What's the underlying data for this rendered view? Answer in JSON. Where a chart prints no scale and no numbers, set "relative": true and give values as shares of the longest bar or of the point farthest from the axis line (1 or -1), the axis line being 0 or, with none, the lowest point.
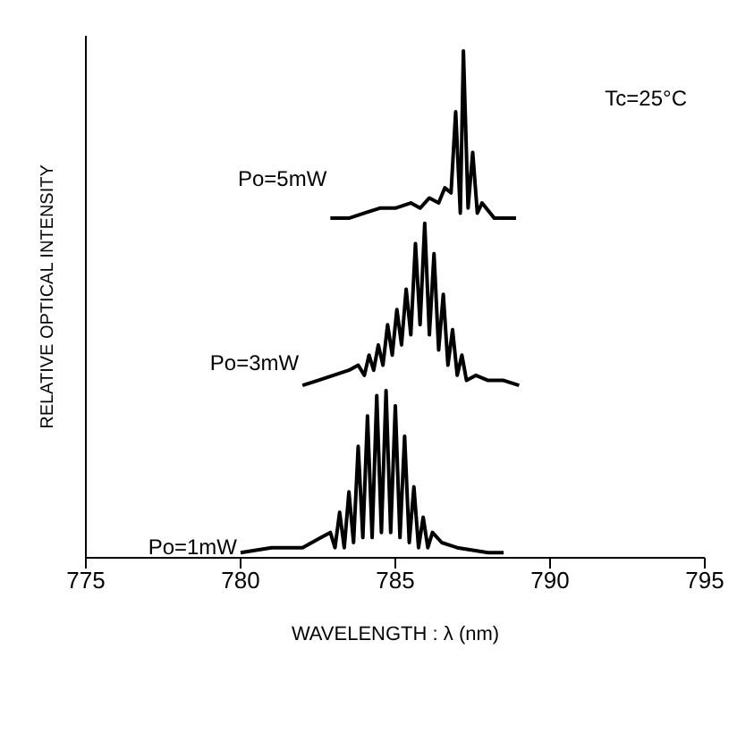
{
  "chart_data": {
    "type": "line",
    "relative": true,
    "xlabel": "WAVELENGTH : λ  (nm)",
    "ylabel": "RELATIVE OPTICAL INTENSITY",
    "xlim": [
      775,
      795
    ],
    "xticks": [
      775,
      780,
      785,
      790,
      795
    ],
    "marker": "none",
    "line_style": "solid",
    "annotations": [
      "Tc=25°C"
    ],
    "series": [
      {
        "name": "Po=5mW",
        "color": "#000000",
        "x": [
          782.9,
          783.5,
          784,
          784.5,
          785,
          785.5,
          785.8,
          786.1,
          786.4,
          786.6,
          786.8,
          786.95,
          787.1,
          787.2,
          787.35,
          787.5,
          787.65,
          787.8,
          788.2,
          788.9
        ],
        "values": [
          0.67,
          0.67,
          0.68,
          0.69,
          0.69,
          0.7,
          0.69,
          0.71,
          0.7,
          0.73,
          0.72,
          0.88,
          0.68,
          1.0,
          0.69,
          0.8,
          0.68,
          0.7,
          0.67,
          0.67
        ]
      },
      {
        "name": "Po=3mW",
        "color": "#000000",
        "x": [
          782,
          782.5,
          783,
          783.5,
          783.8,
          784,
          784.15,
          784.3,
          784.45,
          784.6,
          784.75,
          784.9,
          785.05,
          785.2,
          785.35,
          785.5,
          785.65,
          785.8,
          785.95,
          786.1,
          786.25,
          786.4,
          786.55,
          786.7,
          786.85,
          787,
          787.15,
          787.3,
          787.6,
          788,
          788.5,
          789
        ],
        "values": [
          0.34,
          0.35,
          0.36,
          0.37,
          0.38,
          0.36,
          0.4,
          0.37,
          0.42,
          0.38,
          0.46,
          0.4,
          0.49,
          0.42,
          0.53,
          0.44,
          0.62,
          0.46,
          0.66,
          0.44,
          0.6,
          0.41,
          0.52,
          0.38,
          0.45,
          0.36,
          0.4,
          0.35,
          0.36,
          0.35,
          0.35,
          0.34
        ]
      },
      {
        "name": "Po=1mW",
        "color": "#000000",
        "x": [
          780,
          781,
          782,
          782.6,
          782.9,
          783.05,
          783.2,
          783.35,
          783.5,
          783.65,
          783.8,
          783.95,
          784.1,
          784.25,
          784.4,
          784.55,
          784.7,
          784.85,
          785,
          785.15,
          785.3,
          785.45,
          785.6,
          785.75,
          785.9,
          786.05,
          786.2,
          786.5,
          787,
          788,
          788.5
        ],
        "values": [
          0.01,
          0.02,
          0.02,
          0.04,
          0.05,
          0.02,
          0.09,
          0.02,
          0.13,
          0.03,
          0.22,
          0.04,
          0.28,
          0.04,
          0.32,
          0.05,
          0.33,
          0.05,
          0.3,
          0.04,
          0.24,
          0.03,
          0.14,
          0.02,
          0.08,
          0.02,
          0.05,
          0.03,
          0.02,
          0.01,
          0.01
        ]
      }
    ]
  }
}
